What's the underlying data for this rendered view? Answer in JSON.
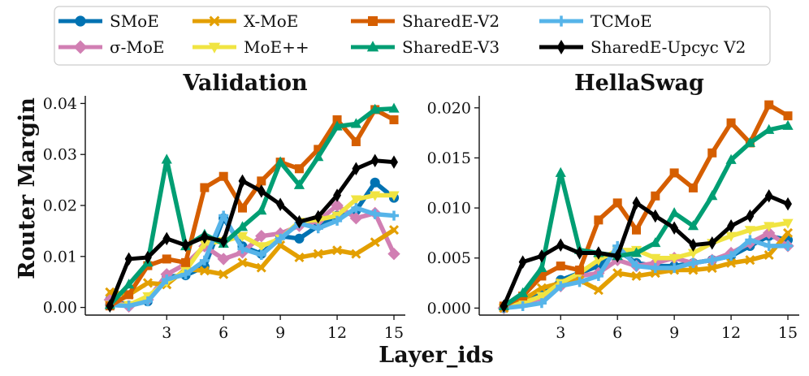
{
  "figure": {
    "xlabel": "Layer_ids",
    "ylabel": "Router Margin"
  },
  "legend": {
    "columns": 4,
    "placement": "top-center",
    "order": [
      "SMoE",
      "σ-MoE",
      "X-MoE",
      "MoE++",
      "SharedE-V2",
      "SharedE-V3",
      "TCMoE",
      "SharedE-Upcyc V2"
    ]
  },
  "styles": {
    "SMoE": {
      "color": "#0072b2",
      "marker": "circle"
    },
    "σ-MoE": {
      "color": "#d17fb3",
      "marker": "diamond"
    },
    "X-MoE": {
      "color": "#e39f00",
      "marker": "x"
    },
    "MoE++": {
      "color": "#f0e442",
      "marker": "triangle-down"
    },
    "SharedE-V2": {
      "color": "#d55e00",
      "marker": "square"
    },
    "SharedE-V3": {
      "color": "#009e73",
      "marker": "triangle-up"
    },
    "TCMoE": {
      "color": "#56b4e9",
      "marker": "plus"
    },
    "SharedE-Upcyc V2": {
      "color": "#000000",
      "marker": "thin-diamond"
    }
  },
  "chart_data": [
    {
      "type": "line",
      "title": "Validation",
      "xlabel": "Layer_ids",
      "ylabel": "Router Margin",
      "x": [
        0,
        1,
        2,
        3,
        4,
        5,
        6,
        7,
        8,
        9,
        10,
        11,
        12,
        13,
        14,
        15
      ],
      "xticks": [
        3,
        6,
        9,
        12,
        15
      ],
      "xtick_labels": [
        "3",
        "6",
        "9",
        "12",
        "15"
      ],
      "yticks": [
        0.0,
        0.01,
        0.02,
        0.03,
        0.04
      ],
      "ytick_labels": [
        "0.00",
        "0.01",
        "0.02",
        "0.03",
        "0.04"
      ],
      "xlim": [
        -1.3,
        15.6
      ],
      "ylim": [
        -0.0015,
        0.0415
      ],
      "grid": false,
      "series": [
        {
          "name": "SMoE",
          "values": [
            0.0015,
            0.0004,
            0.0012,
            0.006,
            0.0063,
            0.008,
            0.0175,
            0.012,
            0.0105,
            0.014,
            0.0135,
            0.016,
            0.018,
            0.019,
            0.0245,
            0.0215
          ]
        },
        {
          "name": "σ-MoE",
          "values": [
            0.0015,
            0.0002,
            0.0015,
            0.0065,
            0.0085,
            0.012,
            0.0095,
            0.0108,
            0.014,
            0.0145,
            0.016,
            0.017,
            0.02,
            0.0175,
            0.0185,
            0.0105
          ]
        },
        {
          "name": "X-MoE",
          "values": [
            0.003,
            0.0025,
            0.0048,
            0.0045,
            0.0075,
            0.0072,
            0.0065,
            0.0088,
            0.0078,
            0.0122,
            0.0098,
            0.0105,
            0.0112,
            0.0105,
            0.0128,
            0.0152
          ]
        },
        {
          "name": "MoE++",
          "values": [
            0.0005,
            0.0005,
            0.0022,
            0.005,
            0.0072,
            0.0125,
            0.013,
            0.014,
            0.012,
            0.0135,
            0.0168,
            0.0172,
            0.018,
            0.0212,
            0.022,
            0.022
          ]
        },
        {
          "name": "SharedE-V2",
          "values": [
            0.0003,
            0.0025,
            0.0082,
            0.0095,
            0.0088,
            0.0235,
            0.0257,
            0.0195,
            0.0248,
            0.0285,
            0.0272,
            0.031,
            0.0368,
            0.0325,
            0.0388,
            0.0368
          ]
        },
        {
          "name": "SharedE-V3",
          "values": [
            0.0005,
            0.0045,
            0.0088,
            0.029,
            0.012,
            0.0143,
            0.0125,
            0.0158,
            0.019,
            0.0285,
            0.024,
            0.0295,
            0.0355,
            0.036,
            0.0388,
            0.039
          ]
        },
        {
          "name": "TCMoE",
          "values": [
            0.0005,
            0.0003,
            0.0012,
            0.0055,
            0.0065,
            0.0092,
            0.018,
            0.0115,
            0.0103,
            0.0135,
            0.0165,
            0.0155,
            0.017,
            0.0195,
            0.0183,
            0.018
          ]
        },
        {
          "name": "SharedE-Upcyc V2",
          "values": [
            0.0003,
            0.0095,
            0.0098,
            0.0135,
            0.0122,
            0.0138,
            0.013,
            0.0248,
            0.0228,
            0.0202,
            0.0168,
            0.0178,
            0.022,
            0.0272,
            0.0288,
            0.0285
          ]
        }
      ]
    },
    {
      "type": "line",
      "title": "HellaSwag",
      "xlabel": "Layer_ids",
      "ylabel": "",
      "x": [
        0,
        1,
        2,
        3,
        4,
        5,
        6,
        7,
        8,
        9,
        10,
        11,
        12,
        13,
        14,
        15
      ],
      "xticks": [
        3,
        6,
        9,
        12,
        15
      ],
      "xtick_labels": [
        "3",
        "6",
        "9",
        "12",
        "15"
      ],
      "yticks": [
        0.0,
        0.005,
        0.01,
        0.015,
        0.02
      ],
      "ytick_labels": [
        "0.000",
        "0.005",
        "0.010",
        "0.015",
        "0.020"
      ],
      "xlim": [
        -1.3,
        15.6
      ],
      "ylim": [
        -0.0007,
        0.0212
      ],
      "grid": false,
      "series": [
        {
          "name": "SMoE",
          "values": [
            0.0,
            0.0008,
            0.0013,
            0.0028,
            0.0035,
            0.0042,
            0.0058,
            0.0045,
            0.0042,
            0.0042,
            0.0045,
            0.0048,
            0.0052,
            0.0062,
            0.0072,
            0.0068
          ]
        },
        {
          "name": "σ-MoE",
          "values": [
            0.0,
            0.0005,
            0.001,
            0.0022,
            0.0032,
            0.0035,
            0.0048,
            0.0042,
            0.0045,
            0.005,
            0.0045,
            0.0048,
            0.0055,
            0.0065,
            0.0075,
            0.0062
          ]
        },
        {
          "name": "X-MoE",
          "values": [
            0.0,
            0.0008,
            0.002,
            0.0025,
            0.0028,
            0.0018,
            0.0035,
            0.0032,
            0.0035,
            0.0038,
            0.0038,
            0.004,
            0.0045,
            0.0048,
            0.0053,
            0.0075
          ]
        },
        {
          "name": "MoE++",
          "values": [
            0.0,
            0.0005,
            0.0012,
            0.0025,
            0.0035,
            0.0048,
            0.0058,
            0.0058,
            0.005,
            0.005,
            0.0055,
            0.0065,
            0.0072,
            0.0078,
            0.0082,
            0.0085
          ]
        },
        {
          "name": "SharedE-V2",
          "values": [
            0.0002,
            0.0012,
            0.0032,
            0.0042,
            0.0038,
            0.0088,
            0.0105,
            0.0078,
            0.0112,
            0.0135,
            0.012,
            0.0155,
            0.0185,
            0.0165,
            0.0203,
            0.0192
          ]
        },
        {
          "name": "SharedE-V3",
          "values": [
            0.0002,
            0.0015,
            0.004,
            0.0135,
            0.0058,
            0.0055,
            0.0052,
            0.0055,
            0.0065,
            0.0095,
            0.0082,
            0.0112,
            0.0148,
            0.0165,
            0.0178,
            0.0182
          ]
        },
        {
          "name": "TCMoE",
          "values": [
            0.0,
            0.0002,
            0.0005,
            0.0022,
            0.0026,
            0.0032,
            0.0062,
            0.0042,
            0.004,
            0.004,
            0.0045,
            0.0048,
            0.0052,
            0.0068,
            0.0062,
            0.0062
          ]
        },
        {
          "name": "SharedE-Upcyc V2",
          "values": [
            0.0002,
            0.0046,
            0.0052,
            0.0063,
            0.0055,
            0.0055,
            0.0052,
            0.0105,
            0.0092,
            0.008,
            0.0063,
            0.0065,
            0.0082,
            0.0092,
            0.0112,
            0.0104
          ]
        }
      ]
    }
  ]
}
